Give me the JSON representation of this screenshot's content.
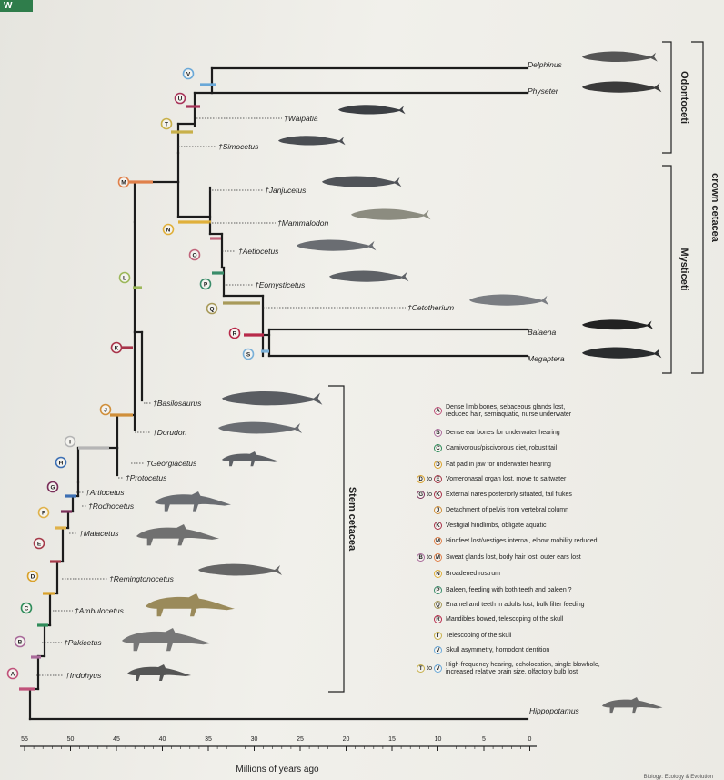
{
  "corner_tab": "W",
  "taxa": [
    {
      "id": "delphinus",
      "label": "Delphinus"
    },
    {
      "id": "physeter",
      "label": "Physeter"
    },
    {
      "id": "waipatia",
      "label": "†Waipatia"
    },
    {
      "id": "simocetus",
      "label": "†Simocetus"
    },
    {
      "id": "janjucetus",
      "label": "†Janjucetus"
    },
    {
      "id": "mammalodon",
      "label": "†Mammalodon"
    },
    {
      "id": "aetiocetus",
      "label": "†Aetiocetus"
    },
    {
      "id": "eomysticetus",
      "label": "†Eomysticetus"
    },
    {
      "id": "cetotherium",
      "label": "†Cetotherium"
    },
    {
      "id": "balaena",
      "label": "Balaena"
    },
    {
      "id": "megaptera",
      "label": "Megaptera"
    },
    {
      "id": "basilosaurus",
      "label": "†Basilosaurus"
    },
    {
      "id": "dorudon",
      "label": "†Dorudon"
    },
    {
      "id": "georgiacetus",
      "label": "†Georgiacetus"
    },
    {
      "id": "protocetus",
      "label": "†Protocetus"
    },
    {
      "id": "artiocetus",
      "label": "†Artiocetus"
    },
    {
      "id": "rodhocetus",
      "label": "†Rodhocetus"
    },
    {
      "id": "maiacetus",
      "label": "†Maiacetus"
    },
    {
      "id": "remingtonocetus",
      "label": "†Remingtonocetus"
    },
    {
      "id": "ambulocetus",
      "label": "†Ambulocetus"
    },
    {
      "id": "pakicetus",
      "label": "†Pakicetus"
    },
    {
      "id": "indohyus",
      "label": "†Indohyus"
    },
    {
      "id": "hippopotamus",
      "label": "Hippopotamus"
    }
  ],
  "nodes": [
    {
      "letter": "A",
      "color": "#c0527a"
    },
    {
      "letter": "B",
      "color": "#a96a9a"
    },
    {
      "letter": "C",
      "color": "#2f8c5a"
    },
    {
      "letter": "D",
      "color": "#d9a12a"
    },
    {
      "letter": "E",
      "color": "#a63a4a"
    },
    {
      "letter": "F",
      "color": "#e0b24a"
    },
    {
      "letter": "G",
      "color": "#7a2f5a"
    },
    {
      "letter": "H",
      "color": "#3c6fb3"
    },
    {
      "letter": "I",
      "color": "#b5b5b5"
    },
    {
      "letter": "J",
      "color": "#d08f3a"
    },
    {
      "letter": "K",
      "color": "#a8344a"
    },
    {
      "letter": "L",
      "color": "#9cb85a"
    },
    {
      "letter": "M",
      "color": "#e0804a"
    },
    {
      "letter": "N",
      "color": "#e0b03a"
    },
    {
      "letter": "O",
      "color": "#c0647a"
    },
    {
      "letter": "P",
      "color": "#3a8c6a"
    },
    {
      "letter": "Q",
      "color": "#a89a5a"
    },
    {
      "letter": "R",
      "color": "#b82a4a"
    },
    {
      "letter": "S",
      "color": "#7ab0d8"
    },
    {
      "letter": "T",
      "color": "#c8b04a"
    },
    {
      "letter": "U",
      "color": "#a8345a"
    },
    {
      "letter": "V",
      "color": "#6aa8d8"
    }
  ],
  "brackets": {
    "odontoceti": "Odontoceti",
    "mysticeti": "Mysticeti",
    "crown": "crown cetacea",
    "stem": "Stem cetacea"
  },
  "axis": {
    "title": "Millions of years ago",
    "ticks": [
      "55",
      "50",
      "45",
      "40",
      "35",
      "30",
      "25",
      "20",
      "15",
      "10",
      "5",
      "0"
    ]
  },
  "legend": [
    {
      "pre": [],
      "letter": "A",
      "text": "Dense limb bones, sebaceous glands lost,\nreduced hair, semiaquatic, nurse underwater"
    },
    {
      "pre": [],
      "letter": "B",
      "text": "Dense ear bones for underwater hearing"
    },
    {
      "pre": [],
      "letter": "C",
      "text": "Carnivorous/piscivorous diet, robust tail"
    },
    {
      "pre": [],
      "letter": "D",
      "text": "Fat pad in jaw for underwater hearing"
    },
    {
      "pre": [
        "D",
        "to"
      ],
      "letter": "E",
      "text": "Vomeronasal organ lost, move to saltwater"
    },
    {
      "pre": [
        "G",
        "to"
      ],
      "letter": "K",
      "text": "External nares posteriorly situated, tail flukes"
    },
    {
      "pre": [],
      "letter": "J",
      "text": "Detachment of pelvis from vertebral column"
    },
    {
      "pre": [],
      "letter": "K",
      "text": "Vestigial hindlimbs, obligate aquatic"
    },
    {
      "pre": [],
      "letter": "M",
      "text": "Hindfeet lost/vestiges internal, elbow mobility reduced"
    },
    {
      "pre": [
        "B",
        "to"
      ],
      "letter": "M",
      "text": "Sweat glands lost, body hair lost, outer ears lost"
    },
    {
      "pre": [],
      "letter": "N",
      "text": "Broadened rostrum"
    },
    {
      "pre": [],
      "letter": "P",
      "text": "Baleen, feeding with both teeth and baleen ?"
    },
    {
      "pre": [],
      "letter": "Q",
      "text": "Enamel and teeth in adults lost, bulk filter feeding"
    },
    {
      "pre": [],
      "letter": "R",
      "text": "Mandibles bowed, telescoping of the skull"
    },
    {
      "pre": [],
      "letter": "T",
      "text": "Telescoping of the skull"
    },
    {
      "pre": [],
      "letter": "V",
      "text": "Skull asymmetry, homodont dentition"
    },
    {
      "pre": [
        "T",
        "to"
      ],
      "letter": "V",
      "text": "High-frequency hearing, echolocation, single blowhole,\nincreased relative brain size, olfactory bulb lost"
    }
  ],
  "credit": "Biology: Ecology & Evolution"
}
